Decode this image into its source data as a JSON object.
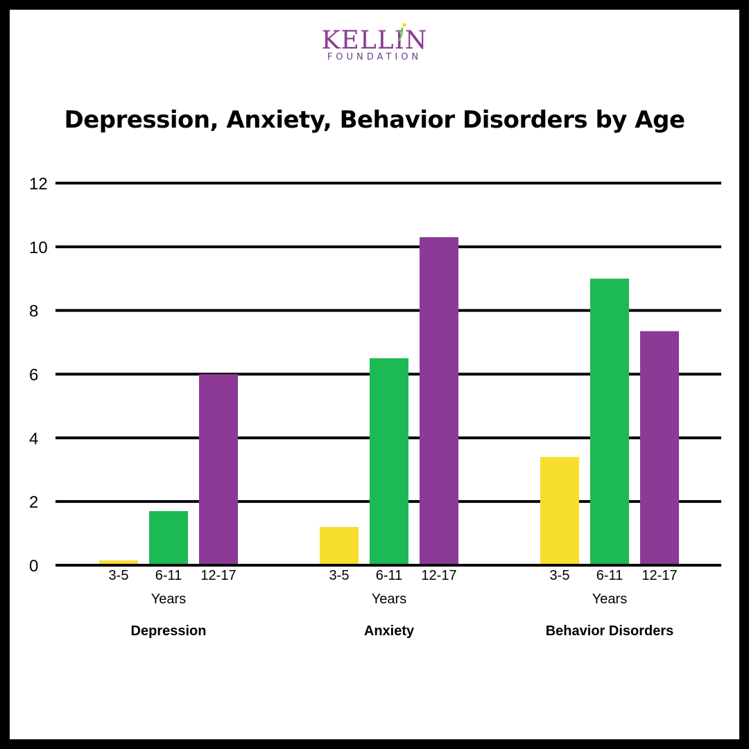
{
  "logo": {
    "main_text": "KELLIN",
    "sub_text": "FOUNDATION",
    "colors": {
      "main": "#8B3A96",
      "sub": "#6B3F87",
      "leaf": "#6DBE45",
      "dot": "#F6E03A"
    }
  },
  "chart_data": {
    "type": "bar",
    "title": "Depression, Anxiety, Behavior Disorders by Age",
    "ylim": [
      0,
      12
    ],
    "yticks": [
      "0",
      "2",
      "4",
      "6",
      "8",
      "10",
      "12"
    ],
    "grid": true,
    "categories": [
      "3-5",
      "6-11",
      "12-17"
    ],
    "category_unit": "Years",
    "series_colors": [
      "#F8DE2C",
      "#1DB954",
      "#8C3A96"
    ],
    "groups": [
      {
        "name": "Depression",
        "values": [
          0.15,
          1.7,
          6.0
        ]
      },
      {
        "name": "Anxiety",
        "values": [
          1.2,
          6.5,
          10.3
        ]
      },
      {
        "name": "Behavior Disorders",
        "values": [
          3.4,
          9.0,
          7.35
        ]
      }
    ]
  }
}
